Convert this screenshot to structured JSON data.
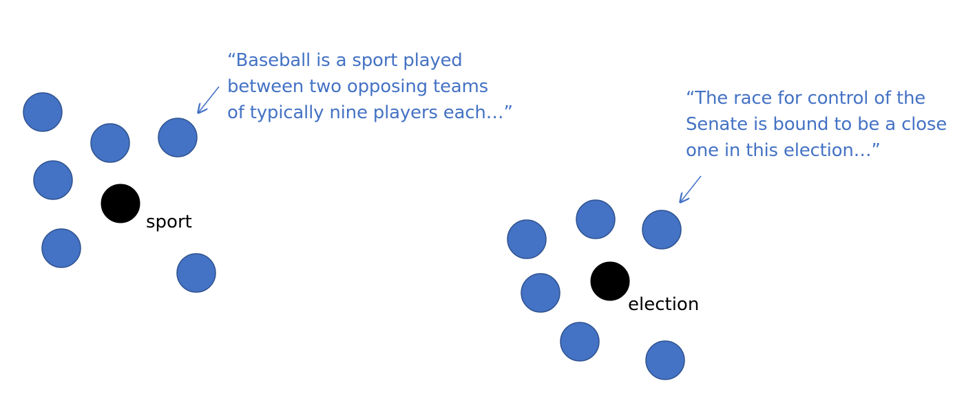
{
  "colors": {
    "context_dot": "#4472C4",
    "context_dot_outline": "#2F528F",
    "word_dot": "#000000",
    "quote_text": "#4472C4",
    "arrow": "#4472C4",
    "label_text": "#000000"
  },
  "clusters": [
    {
      "word": "sport",
      "quote_lines": [
        "“Baseball is a sport played",
        "between two opposing teams",
        "of typically nine players each…”"
      ]
    },
    {
      "word": "election",
      "quote_lines": [
        "“The race for control of the",
        "Senate is bound to be a close",
        "one in this election…”"
      ]
    }
  ]
}
